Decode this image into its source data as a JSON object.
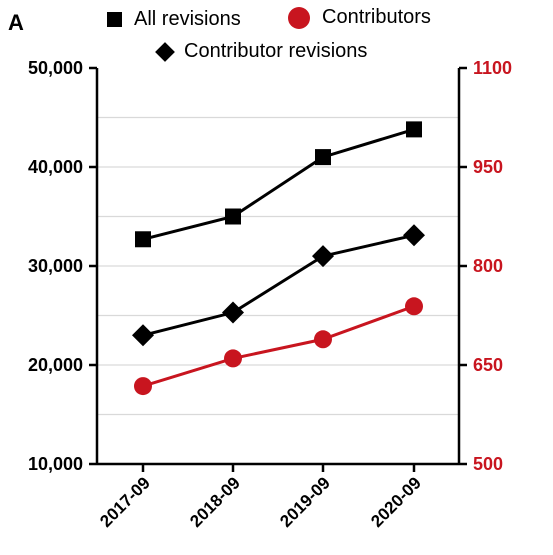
{
  "panel_label": "A",
  "colors": {
    "black": "#000000",
    "red": "#c8151f",
    "grid": "#d9d9d9"
  },
  "legend": [
    {
      "label": "All revisions",
      "marker": "square"
    },
    {
      "label": "Contributors",
      "marker": "circle"
    },
    {
      "label": "Contributor revisions",
      "marker": "diamond"
    }
  ],
  "chart_data": {
    "type": "line",
    "x": [
      "2017-09",
      "2018-09",
      "2019-09",
      "2020-09"
    ],
    "y_left_ticks": [
      "10,000",
      "20,000",
      "30,000",
      "40,000",
      "50,000"
    ],
    "y_right_ticks": [
      "500",
      "650",
      "800",
      "950",
      "1100"
    ],
    "ylim_left": [
      10000,
      50000
    ],
    "ylim_right": [
      500,
      1100
    ],
    "grid": true,
    "legend_position": "top",
    "series": [
      {
        "name": "All revisions",
        "axis": "left",
        "marker": "square",
        "color": "#000000",
        "values": [
          32700,
          35000,
          41000,
          43800
        ]
      },
      {
        "name": "Contributor revisions",
        "axis": "left",
        "marker": "diamond",
        "color": "#000000",
        "values": [
          23000,
          25300,
          31000,
          33100
        ]
      },
      {
        "name": "Contributors",
        "axis": "right",
        "marker": "circle",
        "color": "#c8151f",
        "values": [
          618,
          660,
          689,
          739
        ]
      }
    ]
  }
}
